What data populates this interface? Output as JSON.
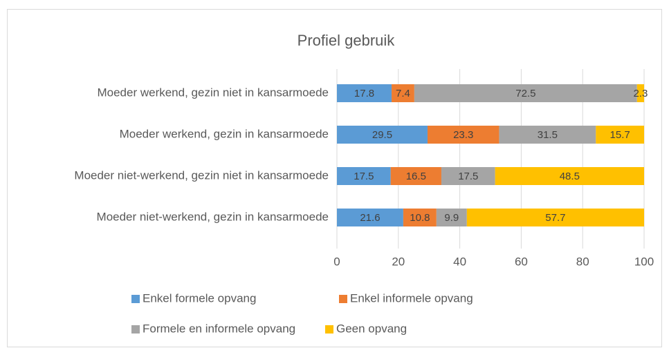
{
  "chart_data": {
    "type": "stacked-bar-horizontal",
    "title": "Profiel gebruik",
    "categories": [
      "Moeder werkend, gezin niet in kansarmoede",
      "Moeder werkend, gezin in kansarmoede",
      "Moeder niet-werkend, gezin niet in kansarmoede",
      "Moeder niet-werkend, gezin in kansarmoede"
    ],
    "series": [
      {
        "name": "Enkel formele opvang",
        "color": "#5b9bd5",
        "values": [
          17.8,
          29.5,
          17.5,
          21.6
        ]
      },
      {
        "name": "Enkel informele opvang",
        "color": "#ed7d31",
        "values": [
          7.4,
          23.3,
          16.5,
          10.8
        ]
      },
      {
        "name": "Formele en informele opvang",
        "color": "#a5a5a5",
        "values": [
          72.5,
          31.5,
          17.5,
          9.9
        ]
      },
      {
        "name": "Geen opvang",
        "color": "#ffc000",
        "values": [
          2.3,
          15.7,
          48.5,
          57.7
        ]
      }
    ],
    "xlim": [
      0,
      100
    ],
    "xticks": [
      0,
      20,
      40,
      60,
      80,
      100
    ],
    "grid": true,
    "legend": "bottom"
  }
}
